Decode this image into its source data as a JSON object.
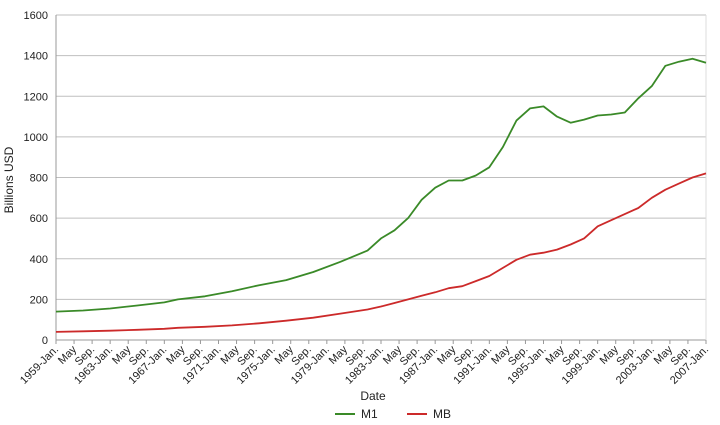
{
  "chart_data": {
    "type": "line",
    "xlabel": "Date",
    "ylabel": "Billions USD",
    "ylim": [
      0,
      1600
    ],
    "y_ticks": [
      0,
      200,
      400,
      600,
      800,
      1000,
      1200,
      1400,
      1600
    ],
    "x_range": [
      1959.0,
      2007.0
    ],
    "x_tick_labels": [
      "1959-Jan.",
      "May",
      "Sep.",
      "1963-Jan.",
      "May",
      "Sep.",
      "1967-Jan.",
      "May",
      "Sep.",
      "1971-Jan.",
      "May",
      "Sep.",
      "1975-Jan.",
      "May",
      "Sep.",
      "1979-Jan.",
      "May",
      "Sep.",
      "1983-Jan.",
      "May",
      "Sep.",
      "1987-Jan.",
      "May",
      "Sep.",
      "1991-Jan.",
      "May",
      "Sep.",
      "1995-Jan.",
      "May",
      "Sep.",
      "1999-Jan.",
      "May",
      "Sep.",
      "2003-Jan.",
      "May",
      "Sep.",
      "2007-Jan."
    ],
    "grid": "horizontal",
    "legend_position": "bottom",
    "x": [
      1959,
      1961,
      1963,
      1965,
      1967,
      1968,
      1970,
      1972,
      1974,
      1976,
      1978,
      1980,
      1982,
      1983,
      1984,
      1985,
      1986,
      1987,
      1988,
      1989,
      1990,
      1991,
      1992,
      1993,
      1994,
      1995,
      1996,
      1997,
      1998,
      1999,
      2000,
      2001,
      2002,
      2003,
      2004,
      2005,
      2006,
      2007
    ],
    "series": [
      {
        "name": "M1",
        "color": "#3a8a28",
        "values": [
          140,
          145,
          155,
          170,
          185,
          200,
          215,
          240,
          270,
          295,
          335,
          385,
          440,
          500,
          540,
          600,
          690,
          750,
          785,
          785,
          810,
          850,
          950,
          1080,
          1140,
          1150,
          1100,
          1070,
          1085,
          1105,
          1110,
          1120,
          1190,
          1250,
          1350,
          1370,
          1385,
          1365
        ]
      },
      {
        "name": "MB",
        "color": "#cc2a2a",
        "values": [
          40,
          43,
          46,
          50,
          55,
          60,
          65,
          72,
          82,
          95,
          110,
          130,
          150,
          165,
          182,
          200,
          218,
          235,
          255,
          265,
          290,
          315,
          355,
          395,
          420,
          430,
          445,
          470,
          500,
          560,
          590,
          620,
          650,
          700,
          740,
          770,
          800,
          820
        ]
      }
    ]
  }
}
